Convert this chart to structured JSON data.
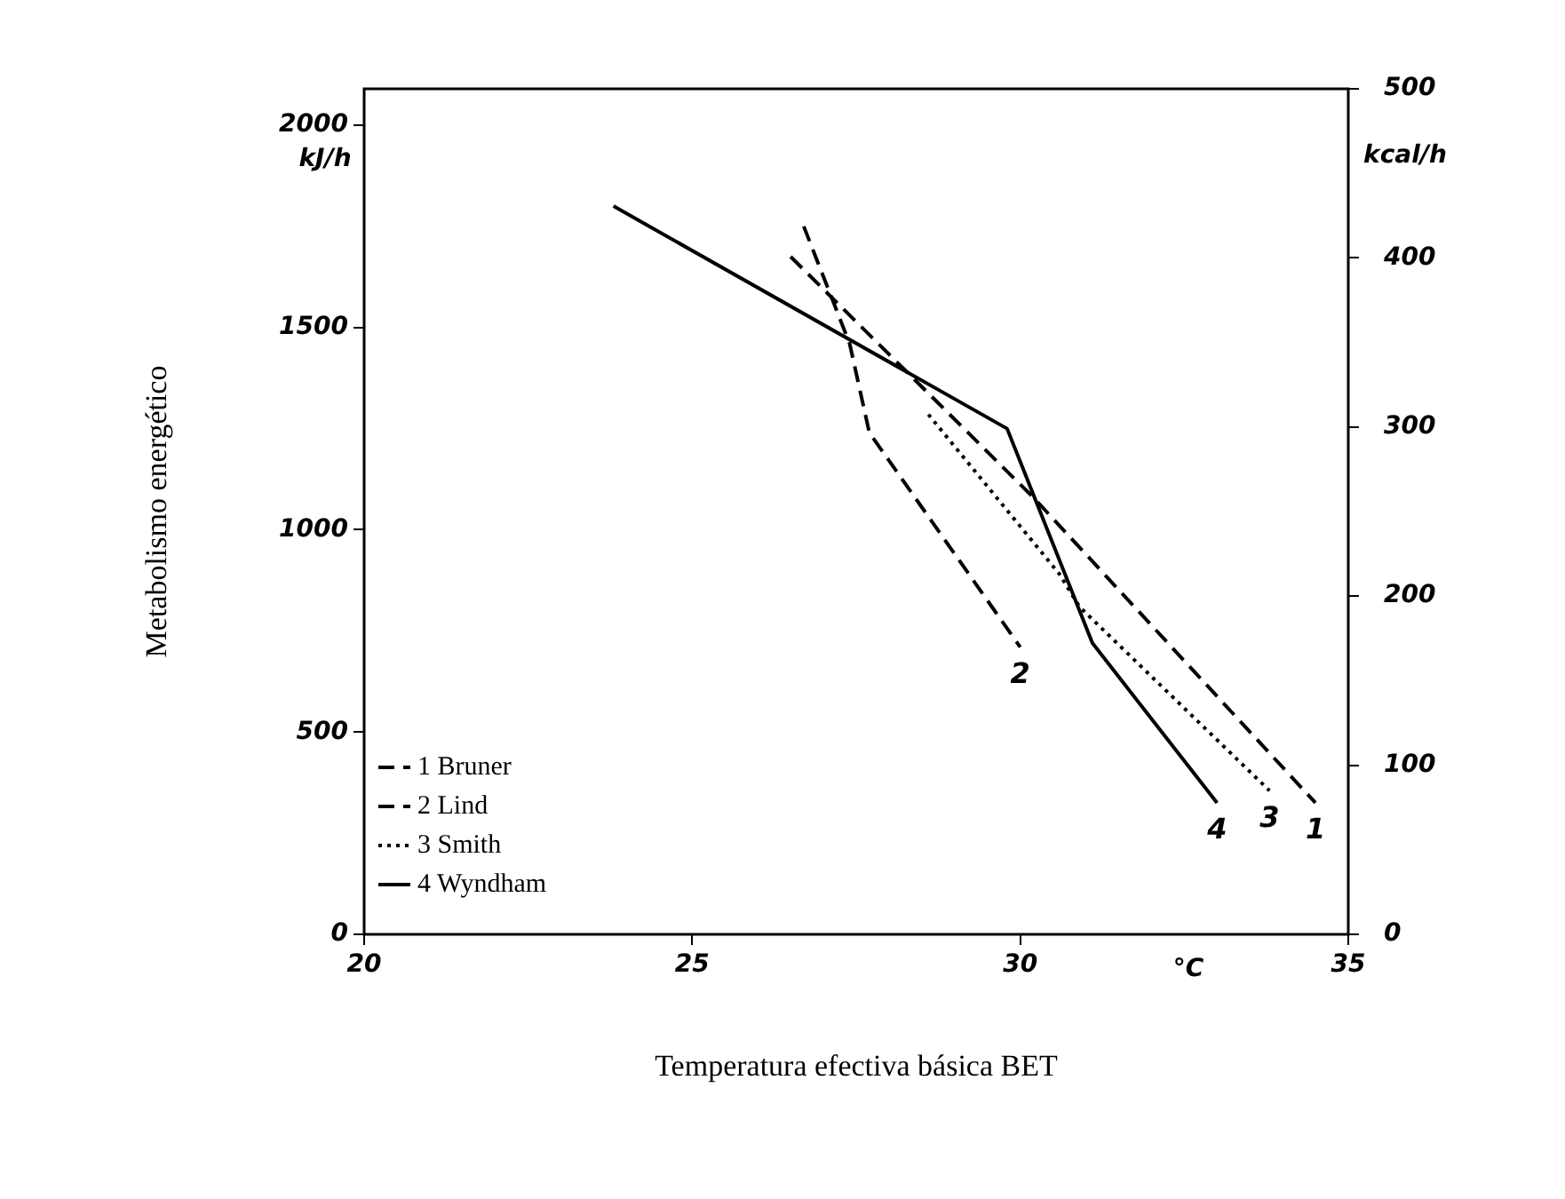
{
  "chart_data": {
    "type": "line",
    "xlabel": "Temperatura efectiva básica BET",
    "ylabel": "Metabolismo energético",
    "xlim": [
      20,
      35
    ],
    "xticks": [
      20,
      25,
      30,
      35
    ],
    "ylim": [
      0,
      2090
    ],
    "yticks": [
      0,
      500,
      1000,
      1500,
      2000
    ],
    "y2lim": [
      0,
      500
    ],
    "y2ticks": [
      0,
      100,
      200,
      300,
      400,
      500
    ],
    "grid": false,
    "legend": "bottom left",
    "marker": "none",
    "series": [
      {
        "name": "1 Bruner",
        "color": "#000000",
        "line_style": "dashed",
        "x": [
          26.5,
          30.2,
          34.5
        ],
        "values": [
          1675,
          1080,
          325
        ]
      },
      {
        "name": "2 Lind",
        "color": "#000000",
        "line_style": "dashed",
        "x": [
          26.7,
          27.4,
          27.7,
          30.0
        ],
        "values": [
          1750,
          1460,
          1240,
          710
        ]
      },
      {
        "name": "3 Smith",
        "color": "#000000",
        "line_style": "dotted",
        "x": [
          28.6,
          30.6,
          30.9,
          33.8
        ],
        "values": [
          1285,
          890,
          810,
          355
        ]
      },
      {
        "name": "4 Wyndham",
        "color": "#000000",
        "line_style": "solid",
        "x": [
          23.8,
          29.8,
          31.1,
          33.0
        ],
        "values": [
          1800,
          1250,
          720,
          325
        ]
      }
    ],
    "annotations": [
      "1",
      "2",
      "3",
      "4",
      "kJ/h",
      "kcal/h",
      "°C"
    ]
  }
}
